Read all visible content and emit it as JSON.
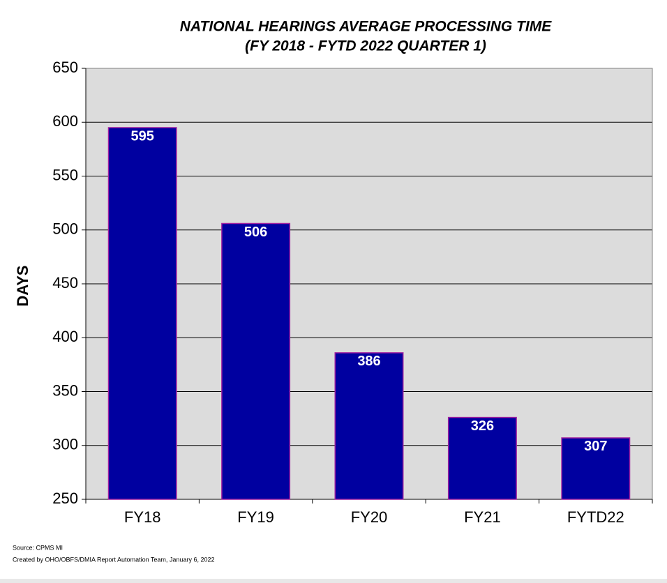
{
  "chart_data": {
    "type": "bar",
    "title": "NATIONAL HEARINGS AVERAGE PROCESSING TIME",
    "subtitle": "(FY 2018 - FYTD 2022 QUARTER 1)",
    "y_label": "DAYS",
    "categories": [
      "FY18",
      "FY19",
      "FY20",
      "FY21",
      "FYTD22"
    ],
    "values": [
      595,
      506,
      386,
      326,
      307
    ],
    "color": "#0000a0",
    "ylim": [
      250,
      650
    ],
    "yticks": [
      250,
      300,
      350,
      400,
      450,
      500,
      550,
      600,
      650
    ],
    "grid": true,
    "source": "Source: CPMS MI",
    "credit": "Created by OHO/OBFS/DMIA Report Automation Team, January  6, 2022"
  }
}
